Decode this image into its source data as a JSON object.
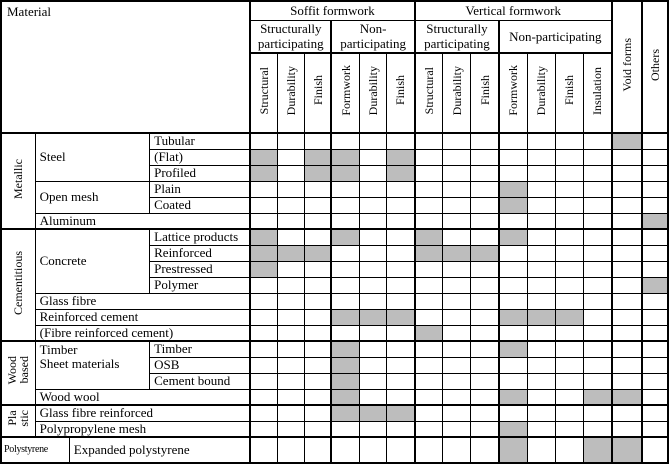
{
  "colors": {
    "shade": "#bdbdbd",
    "border": "#000000",
    "background": "#ffffff"
  },
  "header": {
    "material_label": "Material",
    "soffit": {
      "label": "Soffit formwork",
      "sub": [
        {
          "label": "Structurally participating",
          "cols": [
            "Structural",
            "Durability",
            "Finish"
          ]
        },
        {
          "label": "Non-participating",
          "cols": [
            "Formwork",
            "Durability",
            "Finish"
          ]
        }
      ]
    },
    "vertical": {
      "label": "Vertical formwork",
      "sub": [
        {
          "label": "Structurally participating",
          "cols": [
            "Structural",
            "Durability",
            "Finish"
          ]
        },
        {
          "label": "Non-participating",
          "cols": [
            "Formwork",
            "Durability",
            "Finish",
            "Insulation"
          ]
        }
      ]
    },
    "void_forms": "Void forms",
    "others": "Others"
  },
  "column_keys": [
    "soffit-structural",
    "soffit-durability",
    "soffit-finish",
    "soffit-np-formwork",
    "soffit-np-durability",
    "soffit-np-finish",
    "vertical-structural",
    "vertical-durability",
    "vertical-finish",
    "vertical-np-formwork",
    "vertical-np-durability",
    "vertical-np-finish",
    "vertical-np-insulation",
    "void-forms",
    "others"
  ],
  "groups": [
    {
      "label": "Metallic"
    },
    {
      "label": "Cementitious"
    },
    {
      "label": "Wood\nbased"
    },
    {
      "label": "Pla\nstic"
    },
    {
      "label": "Polystyrene"
    }
  ],
  "rows": [
    {
      "material": "Steel",
      "sub": "Tubular"
    },
    {
      "sub": "(Flat)"
    },
    {
      "sub": "Profiled"
    },
    {
      "material": "Open mesh",
      "sub": "Plain"
    },
    {
      "sub": "Coated"
    },
    {
      "material": "Aluminum"
    },
    {
      "material": "Concrete",
      "sub": "Lattice products"
    },
    {
      "sub": "Reinforced"
    },
    {
      "sub": "Prestressed"
    },
    {
      "sub": "Polymer"
    },
    {
      "material": "Glass fibre"
    },
    {
      "material": "Reinforced cement"
    },
    {
      "material": "(Fibre reinforced cement)"
    },
    {
      "material": "Timber\n Sheet materials",
      "sub": "Timber"
    },
    {
      "sub": "OSB"
    },
    {
      "sub": "Cement bound"
    },
    {
      "material": "Wood wool"
    },
    {
      "material": "Glass fibre reinforced"
    },
    {
      "material": "Polypropylene mesh"
    },
    {
      "material": "Expanded polystyrene"
    }
  ],
  "shading": [
    [
      14
    ],
    [
      1,
      3,
      4,
      6
    ],
    [
      1,
      3,
      4,
      6
    ],
    [
      10
    ],
    [
      10
    ],
    [
      15
    ],
    [
      1,
      4,
      7,
      10
    ],
    [
      1,
      2,
      3,
      7,
      8,
      9
    ],
    [
      1
    ],
    [
      15
    ],
    [],
    [
      4,
      5,
      6,
      10,
      11,
      12
    ],
    [
      7
    ],
    [
      4,
      10
    ],
    [
      4
    ],
    [
      4
    ],
    [
      4,
      10,
      13,
      14
    ],
    [
      4,
      5,
      6
    ],
    [
      10
    ],
    [
      10,
      13,
      14
    ]
  ]
}
